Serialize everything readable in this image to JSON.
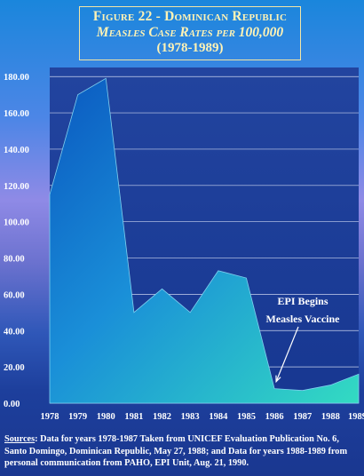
{
  "title": {
    "line1": "Figure 22 - Dominican Republic",
    "line2": "Measles Case Rates per 100,000",
    "line3": "(1978-1989)"
  },
  "chart_data": {
    "type": "area",
    "title": "Figure 22 - Dominican Republic Measles Case Rates per 100,000 (1978-1989)",
    "categories": [
      "1978",
      "1979",
      "1980",
      "1981",
      "1982",
      "1983",
      "1984",
      "1985",
      "1986",
      "1987",
      "1988",
      "1989"
    ],
    "values": [
      115,
      170,
      179,
      50,
      63,
      50,
      73,
      69,
      8,
      7,
      10,
      16
    ],
    "y_ticks": [
      "0.00",
      "20.00",
      "40.00",
      "60.00",
      "80.00",
      "100.00",
      "120.00",
      "140.00",
      "160.00",
      "180.00"
    ],
    "ylim": [
      0,
      185
    ],
    "grid": true,
    "annotations": [
      {
        "line1": "EPI Begins",
        "line2": "Measles Vaccine",
        "points_to": "1986"
      }
    ]
  },
  "sources": {
    "label": "Sources",
    "text1": ": Data for years 1978-1987 Taken from UNICEF Evaluation Publication No. 6,",
    "text2": "Santo Domingo, Dominican Republic, May 27, 1988; and Data for years 1988-1989 from",
    "text3": "personal communication from PAHO, EPI Unit, Aug. 21, 1990."
  },
  "colors": {
    "plot_top": "#1e3f9a",
    "plot_bottom": "#16358c",
    "area_high": "#0b62c6",
    "area_low": "#2ed3c4",
    "grid": "#c9d2ee",
    "title_text": "#fff3b5"
  }
}
